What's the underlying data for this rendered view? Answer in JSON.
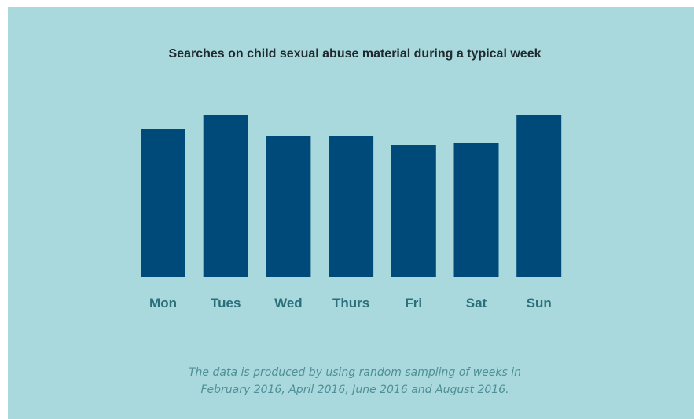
{
  "chart_data": {
    "type": "bar",
    "title": "Searches on child sexual abuse material during a typical week",
    "categories": [
      "Mon",
      "Tues",
      "Wed",
      "Thurs",
      "Fri",
      "Sat",
      "Sun"
    ],
    "values": [
      188,
      206,
      179,
      179,
      168,
      170,
      206
    ],
    "xlabel": "",
    "ylabel": "",
    "ylim": [
      0,
      206
    ],
    "grid": false,
    "legend": "none",
    "colors": {
      "bar": "#004a7a",
      "category_label": "#2a6f7a",
      "background": "#a9d9dc"
    }
  },
  "footnote": {
    "line1": "The data is produced by using random sampling of weeks in",
    "line2": "February 2016, April 2016, June 2016 and August 2016."
  }
}
